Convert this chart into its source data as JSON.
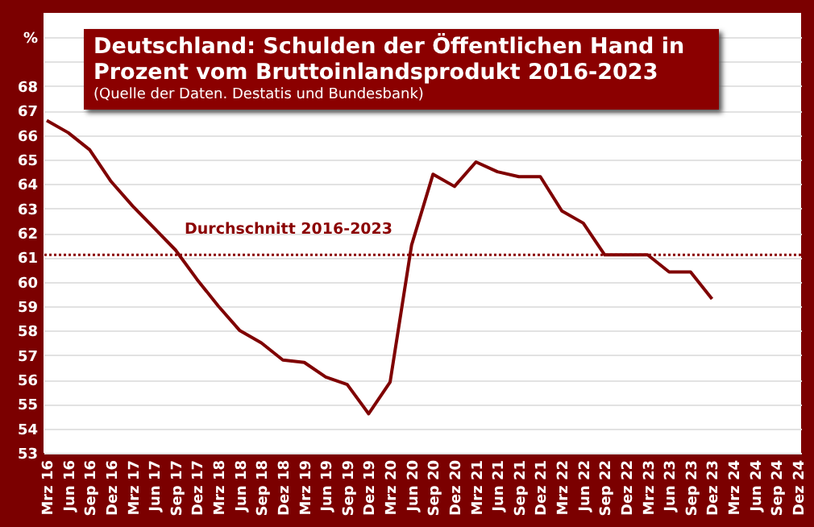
{
  "chart_data": {
    "type": "line",
    "title": "Deutschland: Schulden der Öffentlichen Hand in Prozent vom Bruttoinlandsprodukt 2016-2023",
    "subtitle": "(Quelle der Daten. Destatis und Bundesbank)",
    "categories": [
      "Mrz 16",
      "Jun 16",
      "Sep 16",
      "Dez 16",
      "Mrz 17",
      "Jun 17",
      "Sep 17",
      "Dez 17",
      "Mrz 18",
      "Jun 18",
      "Sep 18",
      "Dez 18",
      "Mrz 19",
      "Jun 19",
      "Sep 19",
      "Dez 19",
      "Mrz 20",
      "Jun 20",
      "Sep 20",
      "Dez 20",
      "Mrz 21",
      "Jun 21",
      "Sep 21",
      "Dez 21",
      "Mrz 22",
      "Jun 22",
      "Sep 22",
      "Dez 22",
      "Mrz 23",
      "Jun 23",
      "Sep 23",
      "Dez 23",
      "Mrz 24",
      "Jun 24",
      "Sep 24",
      "Dez 24"
    ],
    "series": [
      {
        "color": "#7f0000",
        "values": [
          66.6,
          66.1,
          65.4,
          64.1,
          63.1,
          62.2,
          61.3,
          60.1,
          59.0,
          58.0,
          57.5,
          56.8,
          56.7,
          56.1,
          55.8,
          54.6,
          55.9,
          61.5,
          64.4,
          63.9,
          64.9,
          64.5,
          64.3,
          64.3,
          62.9,
          62.4,
          61.1,
          61.1,
          61.1,
          60.4,
          60.4,
          59.3,
          null,
          null,
          null,
          null
        ]
      }
    ],
    "ylim": [
      53,
      71
    ],
    "yticks": [
      53,
      54,
      55,
      56,
      57,
      58,
      59,
      60,
      61,
      62,
      63,
      64,
      65,
      66,
      67,
      68,
      {
        "value": 69,
        "label": null
      },
      {
        "value": 70,
        "label": "%"
      }
    ],
    "grid": "y",
    "marker": "none",
    "line_style": "solid",
    "ref_lines": [
      {
        "axis": "y",
        "value": 61.1,
        "label": "Durchschnitt 2016-2023",
        "color": "#8b0000",
        "line_style": "dotted"
      }
    ]
  }
}
